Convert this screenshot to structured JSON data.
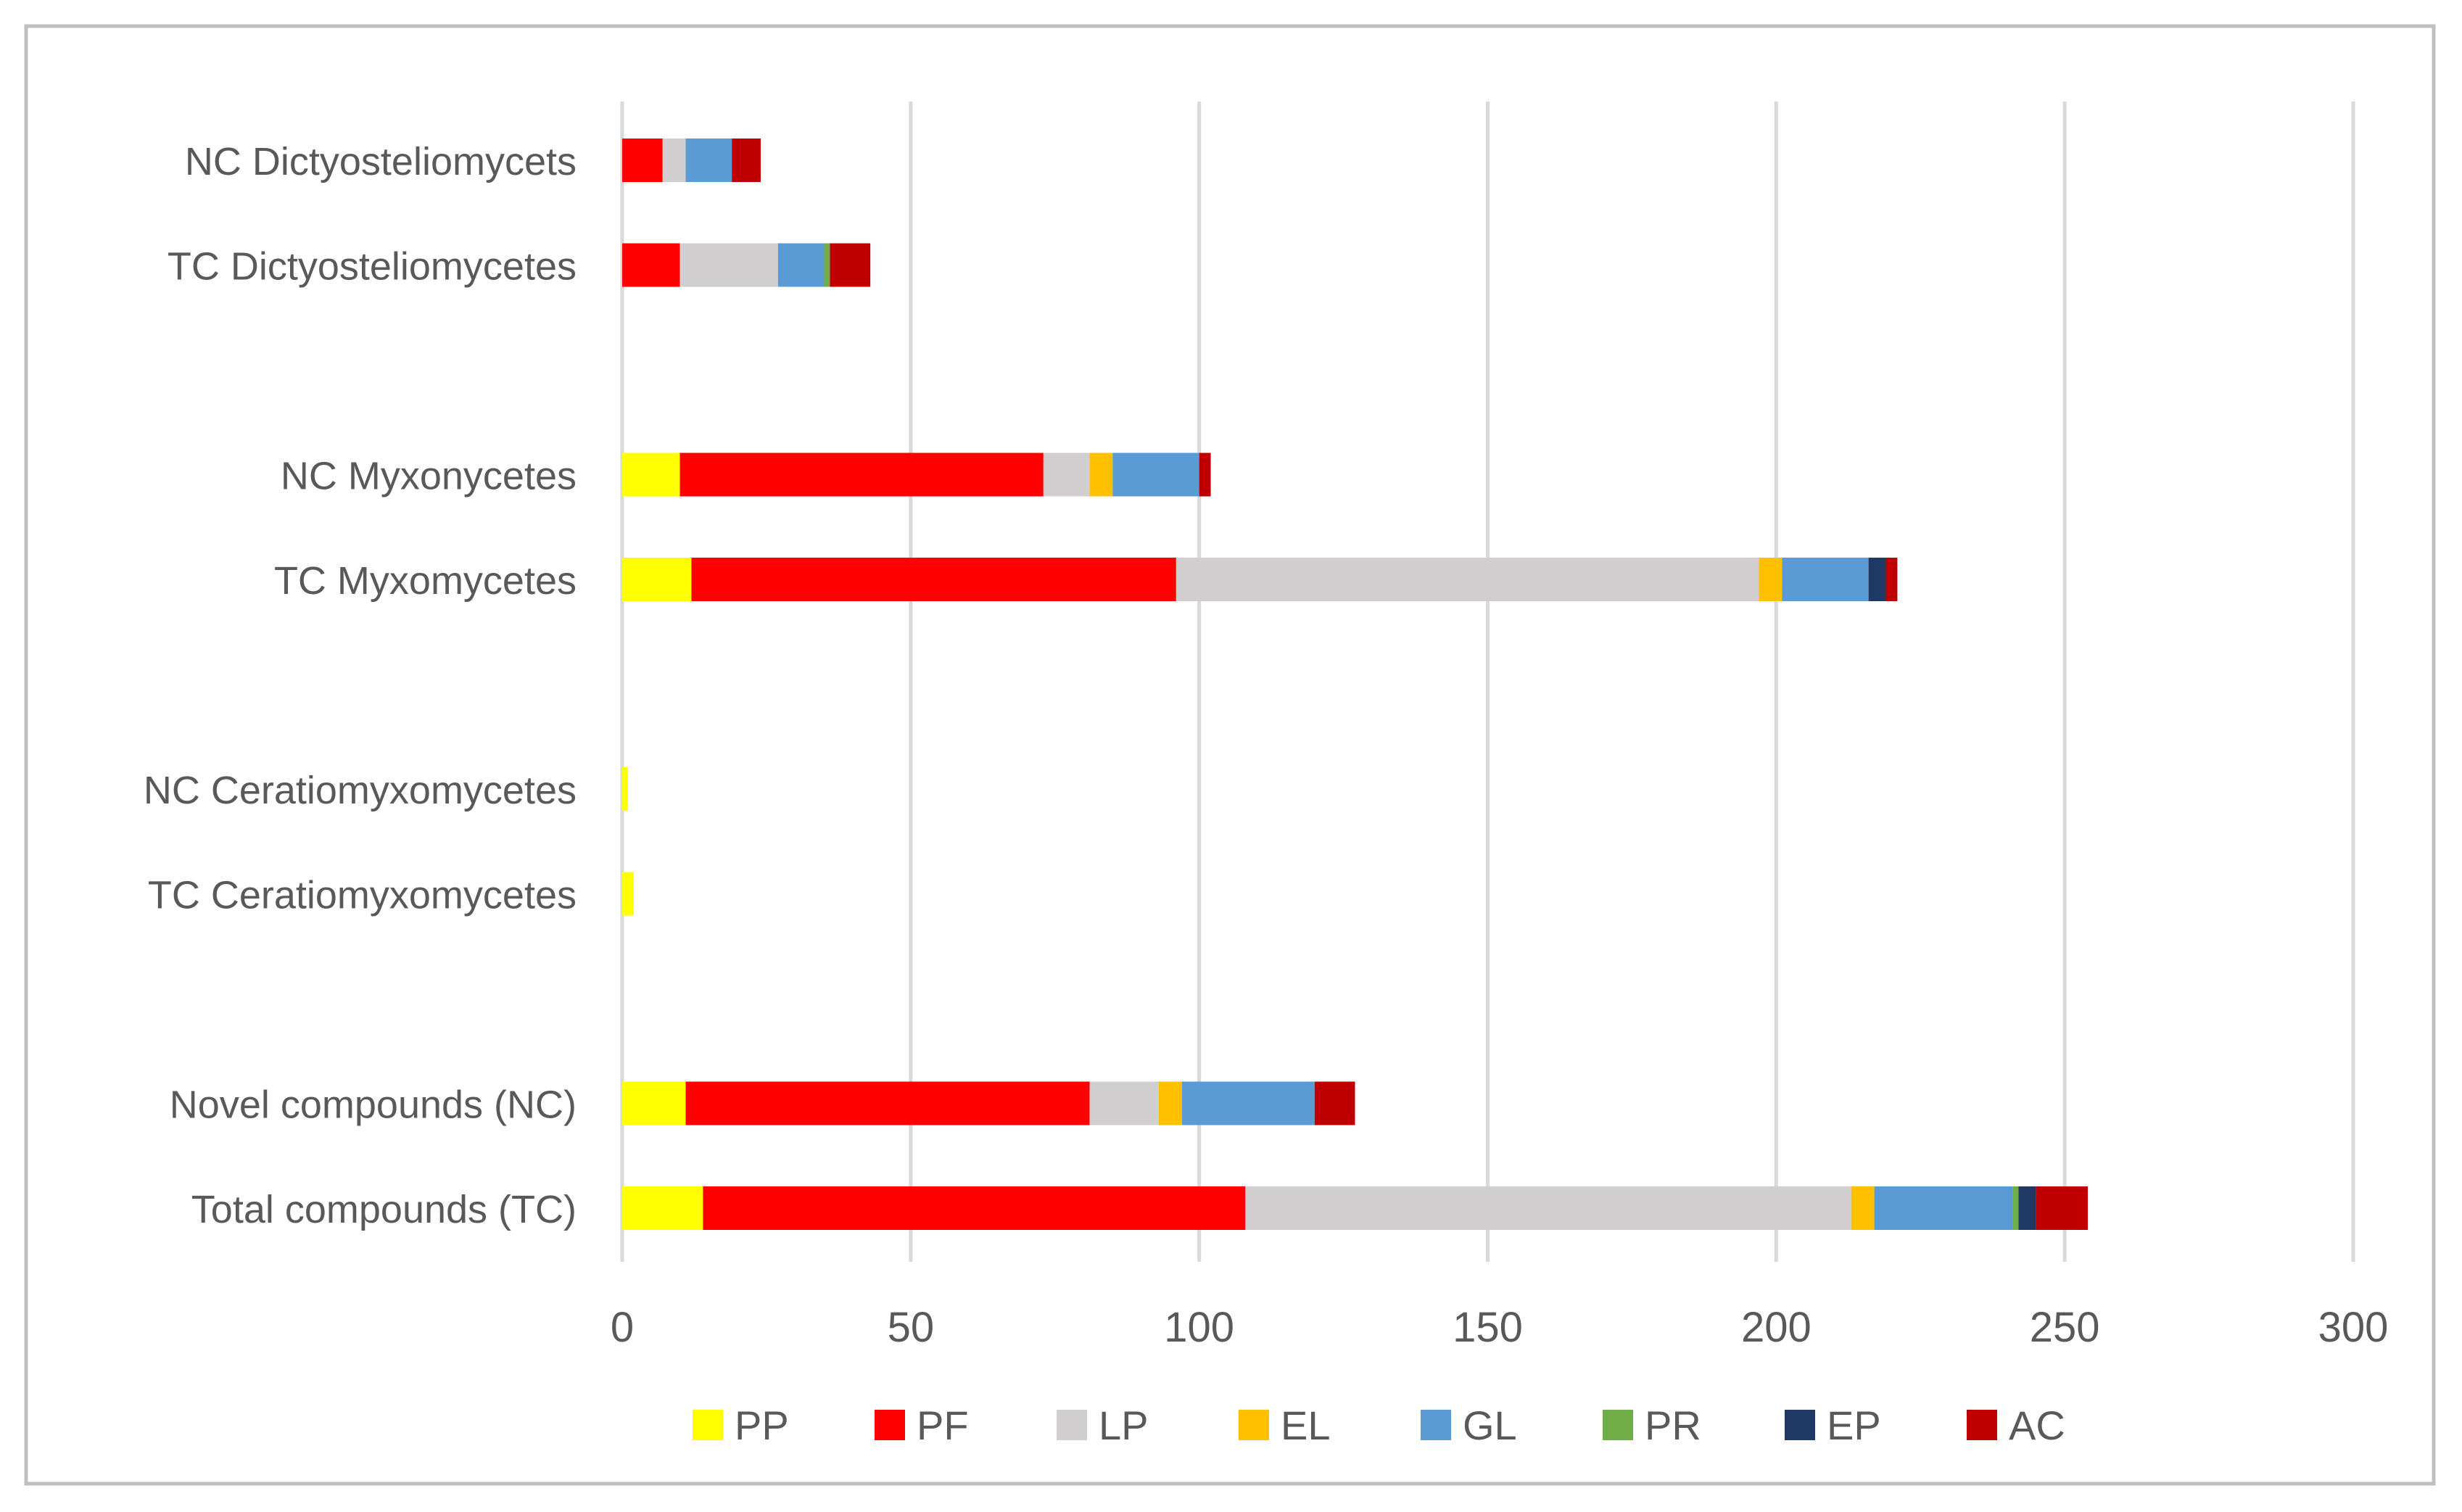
{
  "chart_data": {
    "type": "bar",
    "orientation": "horizontal",
    "stacked": true,
    "title": "",
    "xlabel": "",
    "ylabel": "",
    "xlim": [
      0,
      300
    ],
    "xticks": [
      0,
      50,
      100,
      150,
      200,
      250,
      300
    ],
    "xtick_labels": [
      "0",
      "50",
      "100",
      "150",
      "200",
      "250",
      "300"
    ],
    "grid": "vertical",
    "legend_position": "bottom",
    "categories": [
      "NC Dictyosteliomycets",
      "TC Dictyosteliomycetes",
      "",
      "NC Myxonycetes",
      "TC Myxomycetes",
      "",
      "NC Ceratiomyxomycetes",
      "TC Ceratiomyxomycetes",
      "",
      "Novel compounds (NC)",
      "Total compounds (TC)"
    ],
    "series": [
      {
        "name": "PP",
        "color": "#FFFF00",
        "values": [
          0,
          0,
          0,
          10,
          12,
          0,
          1,
          2,
          0,
          11,
          14
        ]
      },
      {
        "name": "PF",
        "color": "#FF0000",
        "values": [
          7,
          10,
          0,
          63,
          84,
          0,
          0,
          0,
          0,
          70,
          94
        ]
      },
      {
        "name": "LP",
        "color": "#D0CECE",
        "values": [
          4,
          17,
          0,
          8,
          101,
          0,
          0,
          0,
          0,
          12,
          105
        ]
      },
      {
        "name": "EL",
        "color": "#FFC000",
        "values": [
          0,
          0,
          0,
          4,
          4,
          0,
          0,
          0,
          0,
          4,
          4
        ]
      },
      {
        "name": "GL",
        "color": "#5B9BD5",
        "values": [
          8,
          8,
          0,
          15,
          15,
          0,
          0,
          0,
          0,
          23,
          24
        ]
      },
      {
        "name": "PR",
        "color": "#70AD47",
        "values": [
          0,
          1,
          0,
          0,
          0,
          0,
          0,
          0,
          0,
          0,
          1
        ]
      },
      {
        "name": "EP",
        "color": "#203864",
        "values": [
          0,
          0,
          0,
          0,
          3,
          0,
          0,
          0,
          0,
          0,
          3
        ]
      },
      {
        "name": "AC",
        "color": "#C00000",
        "values": [
          5,
          7,
          0,
          2,
          2,
          0,
          0,
          0,
          0,
          7,
          9
        ]
      }
    ]
  }
}
